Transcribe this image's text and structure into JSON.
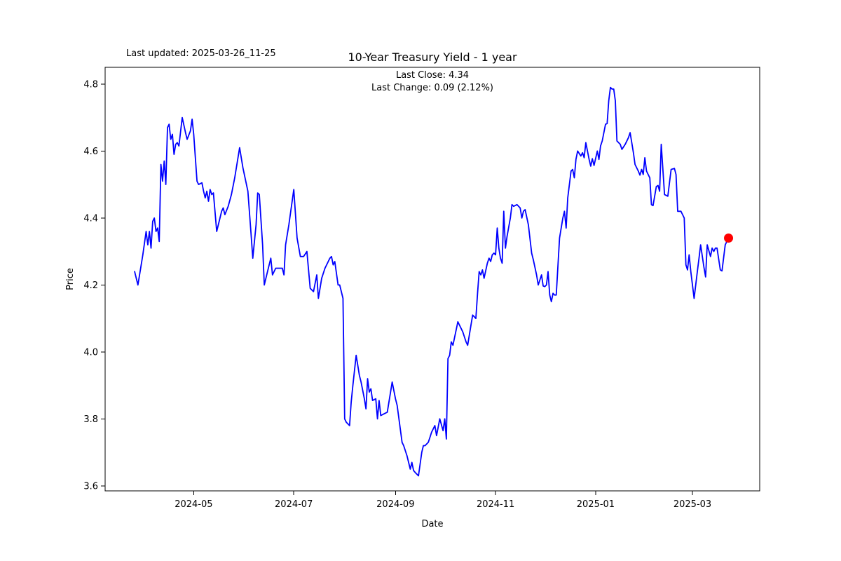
{
  "figure": {
    "last_updated_label": "Last updated: 2025-03-26_11-25"
  },
  "chart_data": {
    "type": "line",
    "title": "10-Year Treasury Yield - 1 year",
    "subtitle_lines": [
      "Last Close: 4.34",
      "Last Change: 0.09 (2.12%)"
    ],
    "last_close": 4.34,
    "last_change": "0.09 (2.12%)",
    "xlabel": "Date",
    "ylabel": "Price",
    "x_unit": "days since 2024-03-26",
    "xlim": [
      -18,
      381
    ],
    "ylim": [
      3.585,
      4.85
    ],
    "grid": false,
    "legend": "none",
    "line_color": "#0000ff",
    "line_width": 1.8,
    "marker": {
      "day": 362,
      "value": 4.34,
      "color": "#ff0000",
      "radius": 6.5
    },
    "x_ticks": [
      {
        "day": 36,
        "label": "2024-05"
      },
      {
        "day": 97,
        "label": "2024-07"
      },
      {
        "day": 159,
        "label": "2024-09"
      },
      {
        "day": 220,
        "label": "2024-11"
      },
      {
        "day": 281,
        "label": "2025-01"
      },
      {
        "day": 340,
        "label": "2025-03"
      }
    ],
    "y_ticks": [
      3.6,
      3.8,
      4.0,
      4.2,
      4.4,
      4.6,
      4.8
    ],
    "series": [
      {
        "name": "10-Year Treasury Yield",
        "points": [
          [
            0,
            4.24
          ],
          [
            2,
            4.2
          ],
          [
            5,
            4.29
          ],
          [
            7,
            4.36
          ],
          [
            8,
            4.32
          ],
          [
            9,
            4.36
          ],
          [
            10,
            4.31
          ],
          [
            11,
            4.39
          ],
          [
            12,
            4.4
          ],
          [
            13,
            4.36
          ],
          [
            14,
            4.37
          ],
          [
            15,
            4.33
          ],
          [
            16,
            4.56
          ],
          [
            17,
            4.51
          ],
          [
            18,
            4.57
          ],
          [
            19,
            4.5
          ],
          [
            20,
            4.67
          ],
          [
            21,
            4.68
          ],
          [
            22,
            4.635
          ],
          [
            23,
            4.65
          ],
          [
            24,
            4.59
          ],
          [
            25,
            4.62
          ],
          [
            26,
            4.625
          ],
          [
            27,
            4.615
          ],
          [
            29,
            4.7
          ],
          [
            31,
            4.655
          ],
          [
            32,
            4.635
          ],
          [
            34,
            4.66
          ],
          [
            35,
            4.695
          ],
          [
            36,
            4.65
          ],
          [
            38,
            4.51
          ],
          [
            39,
            4.5
          ],
          [
            41,
            4.505
          ],
          [
            42,
            4.48
          ],
          [
            43,
            4.46
          ],
          [
            44,
            4.48
          ],
          [
            45,
            4.45
          ],
          [
            46,
            4.485
          ],
          [
            47,
            4.47
          ],
          [
            48,
            4.475
          ],
          [
            50,
            4.36
          ],
          [
            52,
            4.4
          ],
          [
            53,
            4.42
          ],
          [
            54,
            4.43
          ],
          [
            55,
            4.41
          ],
          [
            57,
            4.435
          ],
          [
            59,
            4.47
          ],
          [
            61,
            4.52
          ],
          [
            64,
            4.61
          ],
          [
            66,
            4.55
          ],
          [
            69,
            4.48
          ],
          [
            71,
            4.35
          ],
          [
            72,
            4.28
          ],
          [
            74,
            4.38
          ],
          [
            75,
            4.475
          ],
          [
            76,
            4.47
          ],
          [
            78,
            4.32
          ],
          [
            79,
            4.2
          ],
          [
            81,
            4.24
          ],
          [
            83,
            4.28
          ],
          [
            84,
            4.23
          ],
          [
            86,
            4.25
          ],
          [
            88,
            4.25
          ],
          [
            90,
            4.25
          ],
          [
            91,
            4.23
          ],
          [
            92,
            4.32
          ],
          [
            94,
            4.38
          ],
          [
            97,
            4.485
          ],
          [
            99,
            4.34
          ],
          [
            101,
            4.285
          ],
          [
            103,
            4.285
          ],
          [
            105,
            4.3
          ],
          [
            107,
            4.19
          ],
          [
            109,
            4.18
          ],
          [
            111,
            4.23
          ],
          [
            112,
            4.16
          ],
          [
            114,
            4.22
          ],
          [
            116,
            4.25
          ],
          [
            118,
            4.27
          ],
          [
            119,
            4.28
          ],
          [
            120,
            4.285
          ],
          [
            121,
            4.26
          ],
          [
            122,
            4.27
          ],
          [
            124,
            4.2
          ],
          [
            125,
            4.2
          ],
          [
            127,
            4.16
          ],
          [
            128,
            3.8
          ],
          [
            129,
            3.79
          ],
          [
            131,
            3.78
          ],
          [
            132,
            3.85
          ],
          [
            133,
            3.9
          ],
          [
            135,
            3.99
          ],
          [
            137,
            3.93
          ],
          [
            138,
            3.91
          ],
          [
            140,
            3.86
          ],
          [
            141,
            3.83
          ],
          [
            142,
            3.92
          ],
          [
            143,
            3.88
          ],
          [
            144,
            3.89
          ],
          [
            145,
            3.855
          ],
          [
            147,
            3.86
          ],
          [
            148,
            3.8
          ],
          [
            149,
            3.855
          ],
          [
            150,
            3.81
          ],
          [
            152,
            3.815
          ],
          [
            154,
            3.82
          ],
          [
            157,
            3.91
          ],
          [
            159,
            3.86
          ],
          [
            160,
            3.84
          ],
          [
            163,
            3.73
          ],
          [
            164,
            3.72
          ],
          [
            166,
            3.69
          ],
          [
            168,
            3.65
          ],
          [
            169,
            3.67
          ],
          [
            170,
            3.646
          ],
          [
            171,
            3.64
          ],
          [
            173,
            3.63
          ],
          [
            175,
            3.7
          ],
          [
            176,
            3.72
          ],
          [
            177,
            3.72
          ],
          [
            179,
            3.73
          ],
          [
            180,
            3.745
          ],
          [
            181,
            3.76
          ],
          [
            183,
            3.78
          ],
          [
            184,
            3.75
          ],
          [
            186,
            3.8
          ],
          [
            188,
            3.765
          ],
          [
            189,
            3.8
          ],
          [
            190,
            3.74
          ],
          [
            191,
            3.98
          ],
          [
            192,
            3.99
          ],
          [
            193,
            4.03
          ],
          [
            194,
            4.02
          ],
          [
            197,
            4.09
          ],
          [
            200,
            4.06
          ],
          [
            202,
            4.03
          ],
          [
            203,
            4.02
          ],
          [
            205,
            4.08
          ],
          [
            206,
            4.11
          ],
          [
            208,
            4.1
          ],
          [
            209,
            4.175
          ],
          [
            210,
            4.24
          ],
          [
            211,
            4.23
          ],
          [
            212,
            4.245
          ],
          [
            213,
            4.22
          ],
          [
            215,
            4.265
          ],
          [
            216,
            4.28
          ],
          [
            217,
            4.27
          ],
          [
            218,
            4.29
          ],
          [
            219,
            4.295
          ],
          [
            220,
            4.29
          ],
          [
            221,
            4.37
          ],
          [
            222,
            4.31
          ],
          [
            223,
            4.28
          ],
          [
            224,
            4.265
          ],
          [
            225,
            4.42
          ],
          [
            226,
            4.31
          ],
          [
            227,
            4.345
          ],
          [
            229,
            4.4
          ],
          [
            230,
            4.44
          ],
          [
            231,
            4.435
          ],
          [
            233,
            4.44
          ],
          [
            235,
            4.43
          ],
          [
            236,
            4.4
          ],
          [
            237,
            4.42
          ],
          [
            238,
            4.425
          ],
          [
            240,
            4.38
          ],
          [
            242,
            4.295
          ],
          [
            243,
            4.275
          ],
          [
            245,
            4.23
          ],
          [
            246,
            4.2
          ],
          [
            248,
            4.23
          ],
          [
            249,
            4.197
          ],
          [
            250,
            4.195
          ],
          [
            251,
            4.2
          ],
          [
            252,
            4.24
          ],
          [
            253,
            4.17
          ],
          [
            254,
            4.15
          ],
          [
            255,
            4.175
          ],
          [
            256,
            4.17
          ],
          [
            257,
            4.17
          ],
          [
            259,
            4.34
          ],
          [
            261,
            4.4
          ],
          [
            262,
            4.42
          ],
          [
            263,
            4.37
          ],
          [
            264,
            4.46
          ],
          [
            266,
            4.54
          ],
          [
            267,
            4.545
          ],
          [
            268,
            4.52
          ],
          [
            269,
            4.575
          ],
          [
            270,
            4.6
          ],
          [
            272,
            4.585
          ],
          [
            273,
            4.595
          ],
          [
            274,
            4.58
          ],
          [
            275,
            4.625
          ],
          [
            277,
            4.575
          ],
          [
            278,
            4.555
          ],
          [
            279,
            4.577
          ],
          [
            280,
            4.557
          ],
          [
            282,
            4.6
          ],
          [
            283,
            4.575
          ],
          [
            284,
            4.615
          ],
          [
            285,
            4.63
          ],
          [
            287,
            4.68
          ],
          [
            288,
            4.682
          ],
          [
            289,
            4.75
          ],
          [
            290,
            4.79
          ],
          [
            291,
            4.785
          ],
          [
            292,
            4.785
          ],
          [
            293,
            4.75
          ],
          [
            294,
            4.63
          ],
          [
            296,
            4.62
          ],
          [
            297,
            4.605
          ],
          [
            299,
            4.62
          ],
          [
            301,
            4.64
          ],
          [
            302,
            4.655
          ],
          [
            304,
            4.595
          ],
          [
            305,
            4.56
          ],
          [
            307,
            4.54
          ],
          [
            308,
            4.528
          ],
          [
            309,
            4.545
          ],
          [
            310,
            4.53
          ],
          [
            311,
            4.58
          ],
          [
            312,
            4.54
          ],
          [
            314,
            4.52
          ],
          [
            315,
            4.44
          ],
          [
            316,
            4.437
          ],
          [
            318,
            4.494
          ],
          [
            319,
            4.497
          ],
          [
            320,
            4.48
          ],
          [
            321,
            4.62
          ],
          [
            323,
            4.47
          ],
          [
            325,
            4.465
          ],
          [
            327,
            4.545
          ],
          [
            329,
            4.548
          ],
          [
            330,
            4.53
          ],
          [
            331,
            4.42
          ],
          [
            333,
            4.42
          ],
          [
            334,
            4.41
          ],
          [
            335,
            4.4
          ],
          [
            336,
            4.26
          ],
          [
            337,
            4.245
          ],
          [
            338,
            4.29
          ],
          [
            339,
            4.24
          ],
          [
            341,
            4.16
          ],
          [
            343,
            4.24
          ],
          [
            344,
            4.28
          ],
          [
            345,
            4.32
          ],
          [
            347,
            4.253
          ],
          [
            348,
            4.224
          ],
          [
            349,
            4.32
          ],
          [
            351,
            4.285
          ],
          [
            352,
            4.31
          ],
          [
            353,
            4.3
          ],
          [
            354,
            4.31
          ],
          [
            355,
            4.31
          ],
          [
            357,
            4.245
          ],
          [
            358,
            4.242
          ],
          [
            360,
            4.32
          ],
          [
            362,
            4.34
          ]
        ]
      }
    ]
  }
}
